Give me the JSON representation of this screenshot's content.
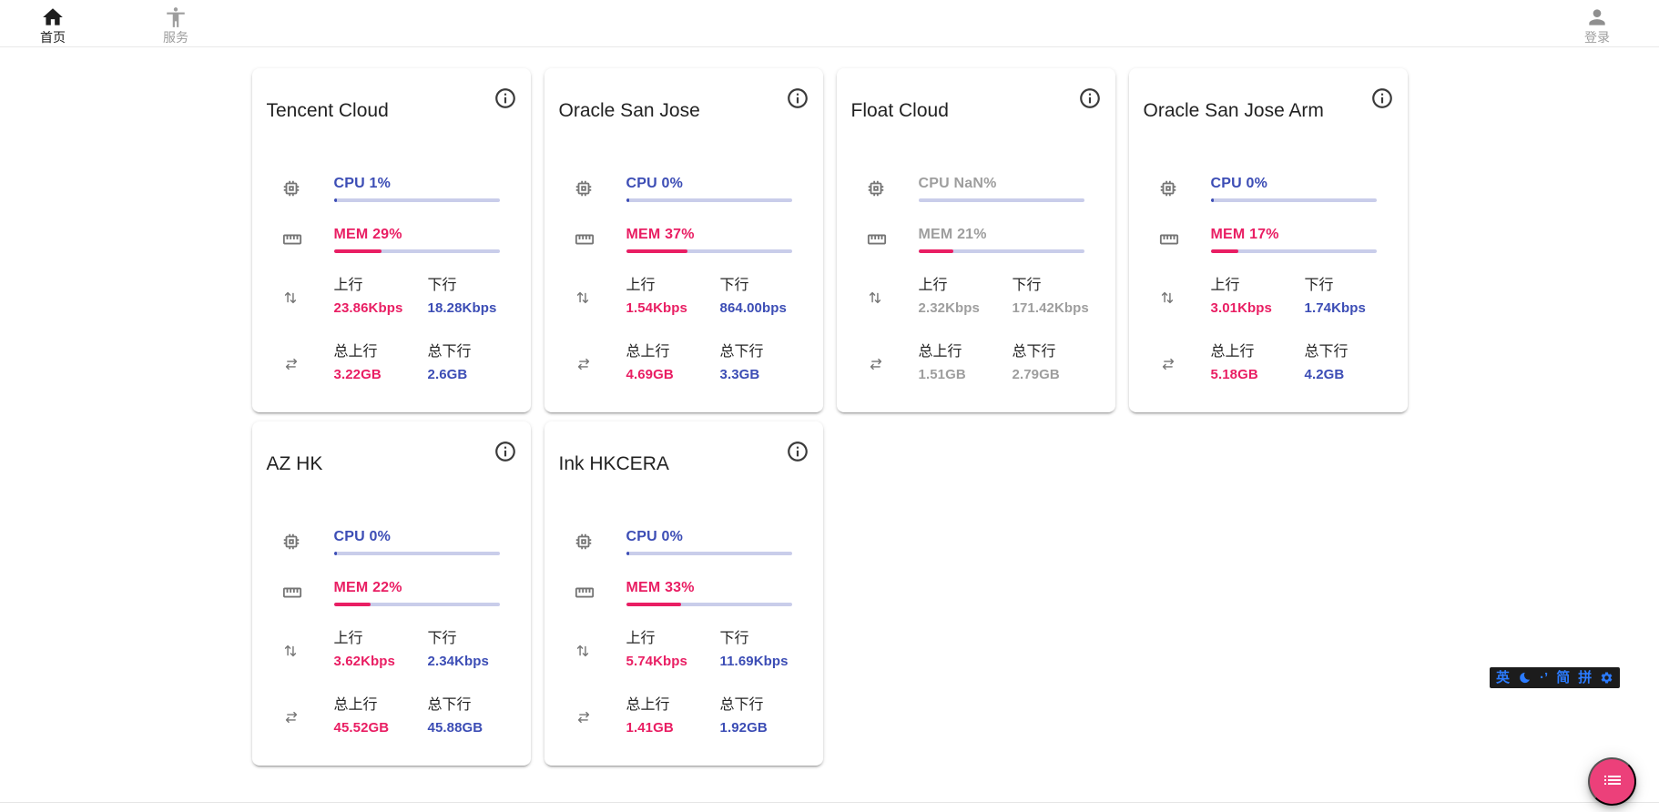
{
  "nav": {
    "home": {
      "label": "首页",
      "icon": "home-icon"
    },
    "services": {
      "label": "服务",
      "icon": "accessibility-icon"
    },
    "login": {
      "label": "登录",
      "icon": "person-icon"
    }
  },
  "labels": {
    "up": "上行",
    "down": "下行",
    "total_up": "总上行",
    "total_down": "总下行"
  },
  "colors": {
    "accent_blue": "#3c4db5",
    "accent_pink": "#e91e63",
    "bar_track": "#c9cdea",
    "muted_text": "#9e9e9e",
    "fab_pink": "#ec407a",
    "ime_blue": "#2b7bff"
  },
  "servers": [
    {
      "name": "Tencent Cloud",
      "cpu_text": "CPU 1%",
      "cpu_pct": 1,
      "mem_text": "MEM 29%",
      "mem_pct": 29,
      "up": "23.86Kbps",
      "down": "18.28Kbps",
      "total_up": "3.22GB",
      "total_down": "2.6GB",
      "muted": false
    },
    {
      "name": "Oracle San Jose",
      "cpu_text": "CPU 0%",
      "cpu_pct": 0,
      "mem_text": "MEM 37%",
      "mem_pct": 37,
      "up": "1.54Kbps",
      "down": "864.00bps",
      "total_up": "4.69GB",
      "total_down": "3.3GB",
      "muted": false
    },
    {
      "name": "Float Cloud",
      "cpu_text": "CPU NaN%",
      "cpu_pct": null,
      "mem_text": "MEM 21%",
      "mem_pct": 21,
      "up": "2.32Kbps",
      "down": "171.42Kbps",
      "total_up": "1.51GB",
      "total_down": "2.79GB",
      "muted": true
    },
    {
      "name": "Oracle San Jose Arm",
      "cpu_text": "CPU 0%",
      "cpu_pct": 0,
      "mem_text": "MEM 17%",
      "mem_pct": 17,
      "up": "3.01Kbps",
      "down": "1.74Kbps",
      "total_up": "5.18GB",
      "total_down": "4.2GB",
      "muted": false
    },
    {
      "name": "AZ HK",
      "cpu_text": "CPU 0%",
      "cpu_pct": 0,
      "mem_text": "MEM 22%",
      "mem_pct": 22,
      "up": "3.62Kbps",
      "down": "2.34Kbps",
      "total_up": "45.52GB",
      "total_down": "45.88GB",
      "muted": false
    },
    {
      "name": "Ink HKCERA",
      "cpu_text": "CPU 0%",
      "cpu_pct": 0,
      "mem_text": "MEM 33%",
      "mem_pct": 33,
      "up": "5.74Kbps",
      "down": "11.69Kbps",
      "total_up": "1.41GB",
      "total_down": "1.92GB",
      "muted": false
    }
  ],
  "ime_bar": {
    "lang": "英",
    "punct": "·’",
    "simplified": "简",
    "pinyin": "拼"
  }
}
